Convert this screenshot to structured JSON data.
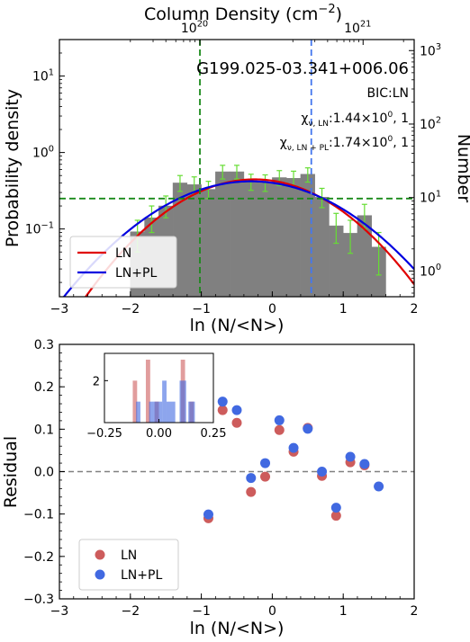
{
  "chart_data": [
    {
      "type": "bar",
      "panel": "top",
      "title": "G199.025-03.341+006.06",
      "annotations": {
        "bic": "BIC:LN",
        "chi_ln_label": "χ",
        "chi_ln_sub": "ν, LN",
        "chi_ln_value": ":1.44×10",
        "chi_ln_exp": "0",
        "chi_ln_dof": ", 1",
        "chi_lnpl_label": "χ",
        "chi_lnpl_sub": "ν, LN + PL",
        "chi_lnpl_value": ":1.74×10",
        "chi_lnpl_exp": "0",
        "chi_lnpl_dof": ", 1"
      },
      "xlabel": "ln (N/<N>)",
      "ylabel": "Probability density",
      "ylabel_right": "Number",
      "xlabel_top": "Column Density (cm",
      "xlabel_top_exp": "−2",
      "xlabel_top_close": ")",
      "xlim": [
        -3,
        2
      ],
      "ylim_log": [
        0.013,
        30
      ],
      "yscale": "log",
      "x_ticks": [
        "−3",
        "−2",
        "−1",
        "0",
        "1",
        "2"
      ],
      "y_ticks_left": [
        {
          "base": "10",
          "exp": "1"
        },
        {
          "base": "10",
          "exp": "0"
        },
        {
          "base": "10",
          "exp": "−1"
        }
      ],
      "y_ticks_right": [
        {
          "base": "10",
          "exp": "3"
        },
        {
          "base": "10",
          "exp": "2"
        },
        {
          "base": "10",
          "exp": "1"
        },
        {
          "base": "10",
          "exp": "0"
        }
      ],
      "top_ticks": [
        {
          "base": "10",
          "exp": "20",
          "x_data": -1.02
        },
        {
          "base": "10",
          "exp": "21",
          "x_data": 1.28
        }
      ],
      "histogram": {
        "bin_width": 0.2,
        "bins": [
          {
            "x": -2.0,
            "y": 0.092
          },
          {
            "x": -1.8,
            "y": 0.14
          },
          {
            "x": -1.6,
            "y": 0.2
          },
          {
            "x": -1.4,
            "y": 0.4
          },
          {
            "x": -1.2,
            "y": 0.38
          },
          {
            "x": -1.0,
            "y": 0.33
          },
          {
            "x": -0.8,
            "y": 0.56
          },
          {
            "x": -0.6,
            "y": 0.56
          },
          {
            "x": -0.4,
            "y": 0.42
          },
          {
            "x": -0.2,
            "y": 0.41
          },
          {
            "x": 0.0,
            "y": 0.47
          },
          {
            "x": 0.2,
            "y": 0.46
          },
          {
            "x": 0.4,
            "y": 0.52
          },
          {
            "x": 0.6,
            "y": 0.26
          },
          {
            "x": 0.8,
            "y": 0.11
          },
          {
            "x": 1.0,
            "y": 0.088
          },
          {
            "x": 1.2,
            "y": 0.15
          },
          {
            "x": 1.4,
            "y": 0.058
          }
        ],
        "error_bars": [
          {
            "x": -1.9,
            "y": 0.092,
            "lo": 0.05,
            "hi": 0.13
          },
          {
            "x": -1.7,
            "y": 0.14,
            "lo": 0.09,
            "hi": 0.2
          },
          {
            "x": -1.5,
            "y": 0.2,
            "lo": 0.14,
            "hi": 0.27
          },
          {
            "x": -1.3,
            "y": 0.4,
            "lo": 0.31,
            "hi": 0.5
          },
          {
            "x": -1.1,
            "y": 0.38,
            "lo": 0.29,
            "hi": 0.48
          },
          {
            "x": -0.9,
            "y": 0.33,
            "lo": 0.25,
            "hi": 0.42
          },
          {
            "x": -0.7,
            "y": 0.56,
            "lo": 0.45,
            "hi": 0.68
          },
          {
            "x": -0.5,
            "y": 0.56,
            "lo": 0.45,
            "hi": 0.68
          },
          {
            "x": -0.3,
            "y": 0.42,
            "lo": 0.32,
            "hi": 0.52
          },
          {
            "x": -0.1,
            "y": 0.41,
            "lo": 0.31,
            "hi": 0.51
          },
          {
            "x": 0.1,
            "y": 0.47,
            "lo": 0.37,
            "hi": 0.58
          },
          {
            "x": 0.3,
            "y": 0.46,
            "lo": 0.36,
            "hi": 0.57
          },
          {
            "x": 0.5,
            "y": 0.52,
            "lo": 0.41,
            "hi": 0.63
          },
          {
            "x": 0.7,
            "y": 0.26,
            "lo": 0.19,
            "hi": 0.34
          },
          {
            "x": 0.9,
            "y": 0.11,
            "lo": 0.065,
            "hi": 0.16
          },
          {
            "x": 1.1,
            "y": 0.088,
            "lo": 0.048,
            "hi": 0.13
          },
          {
            "x": 1.3,
            "y": 0.15,
            "lo": 0.1,
            "hi": 0.21
          },
          {
            "x": 1.5,
            "y": 0.058,
            "lo": 0.025,
            "hi": 0.09
          }
        ]
      },
      "curves": [
        {
          "name": "LN",
          "color": "#e00000",
          "model": "lognormal",
          "peak": 0.445,
          "mu": -0.25,
          "sigma": 0.895
        },
        {
          "name": "LN+PL",
          "color": "#0000e0",
          "model": "lognormal",
          "peak": 0.42,
          "mu": -0.3,
          "sigma": 1.0
        }
      ],
      "reference_lines": {
        "green_vertical_x": -1.02,
        "blue_vertical_x": 0.55,
        "green_horizontal_y": 0.25
      },
      "legend": {
        "placement": "bottom-left",
        "items": [
          "LN",
          "LN+PL"
        ]
      }
    },
    {
      "type": "scatter",
      "panel": "bottom",
      "xlabel": "ln (N/<N>)",
      "ylabel": "Residual",
      "xlim": [
        -3,
        2
      ],
      "ylim": [
        -0.3,
        0.3
      ],
      "x_ticks": [
        "−3",
        "−2",
        "−1",
        "0",
        "1",
        "2"
      ],
      "y_ticks": [
        "0.3",
        "0.2",
        "0.1",
        "0.0",
        "−0.1",
        "−0.2",
        "−0.3"
      ],
      "reference_line_y": 0.0,
      "series": [
        {
          "name": "LN",
          "color": "#cd5c5c",
          "x": [
            -0.9,
            -0.7,
            -0.5,
            -0.3,
            -0.1,
            0.1,
            0.3,
            0.5,
            0.7,
            0.9,
            1.1,
            1.3
          ],
          "y": [
            -0.11,
            0.145,
            0.115,
            -0.048,
            -0.012,
            0.098,
            0.047,
            0.103,
            -0.01,
            -0.104,
            0.022,
            0.015
          ]
        },
        {
          "name": "LN+PL",
          "color": "#4169e1",
          "x": [
            -0.9,
            -0.7,
            -0.5,
            -0.3,
            -0.1,
            0.1,
            0.3,
            0.5,
            0.7,
            0.9,
            1.1,
            1.3,
            1.5
          ],
          "y": [
            -0.101,
            0.165,
            0.145,
            -0.015,
            0.02,
            0.121,
            0.056,
            0.101,
            0.0,
            -0.085,
            0.035,
            0.018,
            -0.035
          ]
        }
      ],
      "legend": {
        "placement": "bottom-left",
        "items": [
          "LN",
          "LN+PL"
        ]
      },
      "inset": {
        "type": "histogram",
        "xlim": [
          -0.25,
          0.25
        ],
        "ylim": [
          0,
          3.3
        ],
        "x_ticks": [
          "−0.25",
          "0.00",
          "0.25"
        ],
        "y_ticks": [
          "2"
        ],
        "series": [
          {
            "name": "LN",
            "color": "#cd5c5c",
            "bars": [
              {
                "x0": -0.12,
                "x1": -0.1,
                "h": 2
              },
              {
                "x0": -0.06,
                "x1": -0.04,
                "h": 3
              },
              {
                "x0": -0.02,
                "x1": 0.0,
                "h": 1
              },
              {
                "x0": 0.1,
                "x1": 0.12,
                "h": 3
              },
              {
                "x0": 0.14,
                "x1": 0.16,
                "h": 1
              },
              {
                "x0": -0.14,
                "x1": 0.16,
                "h": 0
              }
            ]
          },
          {
            "name": "LN+PL",
            "color": "#4169e1",
            "bars": [
              {
                "x0": -0.105,
                "x1": -0.085,
                "h": 1
              },
              {
                "x0": -0.045,
                "x1": -0.025,
                "h": 1
              },
              {
                "x0": -0.025,
                "x1": 0.015,
                "h": 1
              },
              {
                "x0": 0.015,
                "x1": 0.035,
                "h": 2
              },
              {
                "x0": 0.035,
                "x1": 0.075,
                "h": 1
              },
              {
                "x0": 0.095,
                "x1": 0.125,
                "h": 2
              },
              {
                "x0": 0.135,
                "x1": 0.165,
                "h": 1
              }
            ]
          }
        ]
      }
    }
  ]
}
